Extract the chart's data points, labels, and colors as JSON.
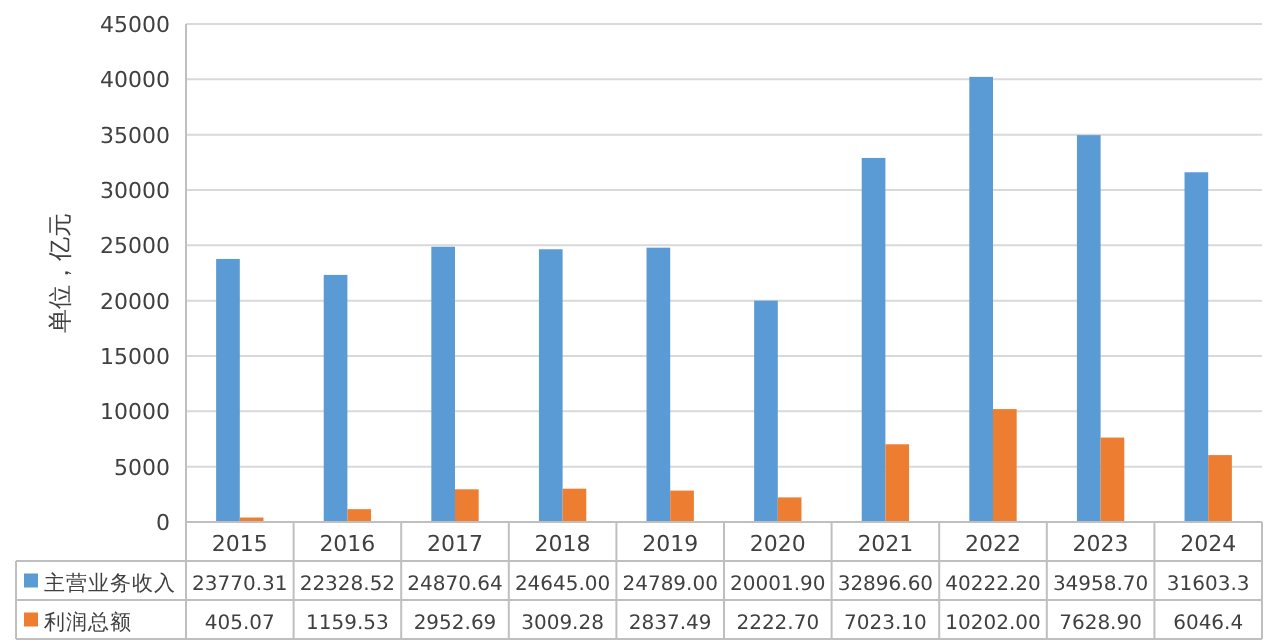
{
  "chart_data": {
    "type": "bar",
    "ylabel": "单位，亿元",
    "categories": [
      "2015",
      "2016",
      "2017",
      "2018",
      "2019",
      "2020",
      "2021",
      "2022",
      "2023",
      "2024"
    ],
    "series": [
      {
        "name": "主营业务收入",
        "color": "#5b9bd5",
        "values": [
          23770.31,
          22328.52,
          24870.64,
          24645.0,
          24789.0,
          20001.9,
          32896.6,
          40222.2,
          34958.7,
          31603.3
        ],
        "value_labels": [
          "23770.31",
          "22328.52",
          "24870.64",
          "24645.00",
          "24789.00",
          "20001.90",
          "32896.60",
          "40222.20",
          "34958.70",
          "31603.3"
        ]
      },
      {
        "name": "利润总额",
        "color": "#ed7d31",
        "values": [
          405.07,
          1159.53,
          2952.69,
          3009.28,
          2837.49,
          2222.7,
          7023.1,
          10202.0,
          7628.9,
          6046.4
        ],
        "value_labels": [
          "405.07",
          "1159.53",
          "2952.69",
          "3009.28",
          "2837.49",
          "2222.70",
          "7023.10",
          "10202.00",
          "7628.90",
          "6046.4"
        ]
      }
    ],
    "ylim": [
      0,
      45000
    ],
    "yticks": [
      0,
      5000,
      10000,
      15000,
      20000,
      25000,
      30000,
      35000,
      40000,
      45000
    ],
    "grid": "y",
    "legend": "bottom"
  }
}
